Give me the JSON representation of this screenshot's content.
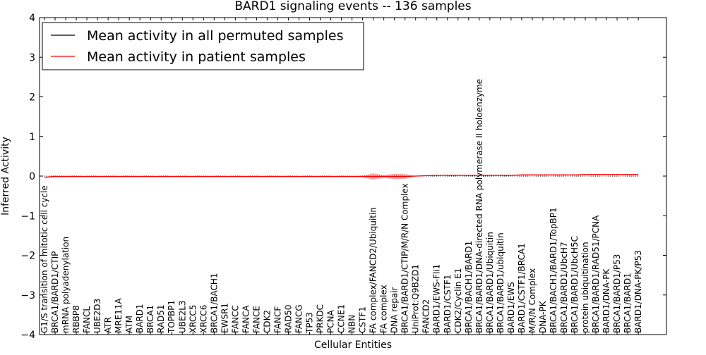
{
  "chart_data": {
    "type": "line",
    "title": "BARD1 signaling events -- 136 samples",
    "xlabel": "Cellular Entities",
    "ylabel": "Inferred Activity",
    "ylim": [
      -4,
      4
    ],
    "yticks": [
      -4,
      -3,
      -2,
      -1,
      0,
      1,
      2,
      3,
      4
    ],
    "ytick_labels": [
      "−4",
      "−3",
      "−2",
      "−1",
      "0",
      "1",
      "2",
      "3",
      "4"
    ],
    "legend_position": "top-left",
    "grid": false,
    "categories": [
      "G1/S transition of mitotic cell cycle",
      "BRCA1/BARD1/CTIP",
      "mRNA polyadenylation",
      "RBBP8",
      "FANCL",
      "UBE2D3",
      "ATR",
      "MRE11A",
      "ATM",
      "BARD1",
      "BRCA1",
      "RAD51",
      "TOPBP1",
      "UBE2L3",
      "XRCC5",
      "XRCC6",
      "BRCA1/BACH1",
      "EWSR1",
      "FANCC",
      "FANCA",
      "FANCE",
      "CDK2",
      "FANCF",
      "RAD50",
      "FANCG",
      "TP53",
      "PRKDC",
      "PCNA",
      "CCNE1",
      "NBN",
      "CSTF1",
      "FA complex/FANCD2/Ubiquitin",
      "FA complex",
      "DNA repair",
      "BRCA1/BARD1/CTIP/M/R/N Complex",
      "UniProt:Q9BZD1",
      "FANCD2",
      "BARD1/EWS-Fli1",
      "BARD1/CSTF1",
      "CDK2/Cyclin E1",
      "BRCA1/BACH1/BARD1",
      "BRCA1/BARD1/DNA-directed RNA polymerase II holoenzyme",
      "BRCA1/BARD1/Ubiquitin",
      "BRCA1/BARD1/ubiquitin",
      "BARD1/EWS",
      "BARD1/CSTF1/BRCA1",
      "M/R/N Complex",
      "DNA-PK",
      "BRCA1/BACH1/BARD1/TopBP1",
      "BRCA1/BARD1/UbcH7",
      "BRCA1/BARD1/UbcH5C",
      "protein ubiquitination",
      "BRCA1/BARD1/RAD51/PCNA",
      "BARD1/DNA-PK",
      "BRCA1/BARD1/P53",
      "BRCA1/BARD1",
      "BARD1/DNA-PK/P53"
    ],
    "series": [
      {
        "name": "Mean activity in all permuted samples",
        "color": "#000000",
        "values": [
          0,
          0,
          0,
          0,
          0,
          0,
          0,
          0,
          0,
          0,
          0,
          0,
          0,
          0,
          0,
          0,
          0,
          0,
          0,
          0,
          0,
          0,
          0,
          0,
          0,
          0,
          0,
          0,
          0,
          0,
          0,
          0,
          0,
          0,
          0,
          0,
          0,
          0,
          0,
          0,
          0,
          0,
          0,
          0,
          0,
          0,
          0,
          0,
          0,
          0,
          0,
          0,
          0,
          0,
          0,
          0,
          0
        ]
      },
      {
        "name": "Mean activity in patient samples",
        "color": "#ff0000",
        "band_color": "#e06666",
        "values": [
          -0.03,
          -0.01,
          -0.01,
          -0.01,
          -0.01,
          -0.01,
          -0.01,
          -0.01,
          -0.01,
          -0.01,
          -0.01,
          -0.01,
          -0.01,
          -0.01,
          -0.01,
          -0.01,
          -0.01,
          -0.01,
          -0.01,
          -0.01,
          -0.01,
          -0.01,
          -0.01,
          -0.01,
          -0.01,
          -0.01,
          -0.01,
          -0.01,
          -0.01,
          -0.01,
          -0.01,
          -0.01,
          -0.01,
          -0.01,
          -0.01,
          0,
          0.01,
          0.02,
          0.02,
          0.02,
          0.02,
          0.02,
          0.02,
          0.02,
          0.02,
          0.03,
          0.03,
          0.03,
          0.03,
          0.03,
          0.03,
          0.04,
          0.04,
          0.04,
          0.04,
          0.04,
          0.04
        ],
        "band_low": [
          -0.03,
          -0.01,
          -0.01,
          -0.01,
          -0.01,
          -0.01,
          -0.01,
          -0.01,
          -0.01,
          -0.01,
          -0.01,
          -0.01,
          -0.01,
          -0.01,
          -0.01,
          -0.01,
          -0.01,
          -0.01,
          -0.01,
          -0.01,
          -0.01,
          -0.01,
          -0.01,
          -0.01,
          -0.01,
          -0.01,
          -0.01,
          -0.01,
          -0.01,
          -0.01,
          -0.03,
          -0.09,
          -0.04,
          -0.08,
          -0.07,
          -0.01,
          0.01,
          0.02,
          0.01,
          0.01,
          0.01,
          0.01,
          0.01,
          0.01,
          0.01,
          0.02,
          0.02,
          0.02,
          0.02,
          0.02,
          0.02,
          0.03,
          0.03,
          0.03,
          0.03,
          0.03,
          0.03
        ],
        "band_high": [
          -0.03,
          -0.01,
          -0.01,
          -0.01,
          -0.01,
          -0.01,
          -0.01,
          -0.01,
          -0.01,
          -0.01,
          -0.01,
          -0.01,
          -0.01,
          -0.01,
          -0.01,
          -0.01,
          -0.01,
          -0.01,
          -0.01,
          -0.01,
          -0.01,
          -0.01,
          -0.01,
          -0.01,
          -0.01,
          -0.01,
          -0.01,
          -0.01,
          -0.01,
          -0.01,
          0.01,
          0.07,
          0.02,
          0.06,
          0.05,
          0.01,
          0.01,
          0.02,
          0.03,
          0.03,
          0.03,
          0.03,
          0.03,
          0.03,
          0.03,
          0.04,
          0.04,
          0.04,
          0.04,
          0.04,
          0.04,
          0.05,
          0.05,
          0.05,
          0.05,
          0.05,
          0.05
        ]
      }
    ]
  }
}
